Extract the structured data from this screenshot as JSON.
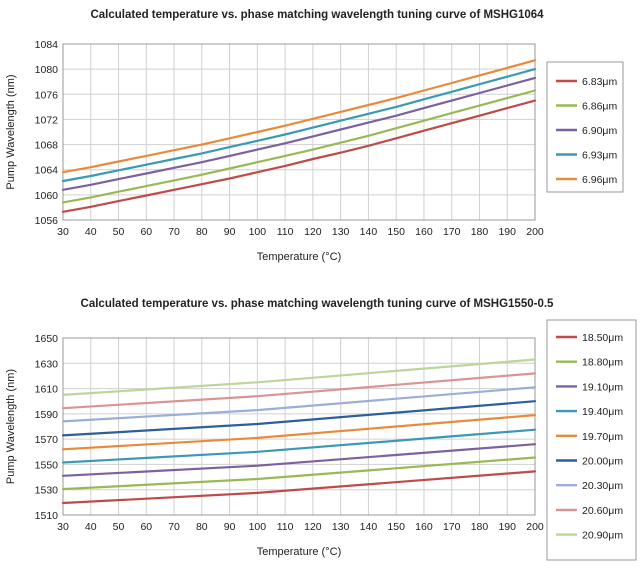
{
  "chart_data": [
    {
      "type": "line",
      "title": "Calculated temperature vs. phase matching wavelength tuning curve of MSHG1064",
      "xlabel": "Temperature (°C)",
      "ylabel": "Pump Wavelength (nm)",
      "xlim": [
        30,
        200
      ],
      "ylim": [
        1056,
        1084
      ],
      "xticks": [
        30,
        40,
        50,
        60,
        70,
        80,
        90,
        100,
        110,
        120,
        130,
        140,
        150,
        160,
        170,
        180,
        190,
        200
      ],
      "yticks": [
        1056,
        1060,
        1064,
        1068,
        1072,
        1076,
        1080,
        1084
      ],
      "grid": true,
      "legend": "right",
      "x": [
        30,
        40,
        50,
        60,
        70,
        80,
        90,
        100,
        110,
        120,
        130,
        140,
        150,
        160,
        170,
        180,
        190,
        200
      ],
      "series": [
        {
          "name": "6.83μm",
          "color": "#be4b48",
          "values": [
            1057.3,
            1058.1,
            1059.0,
            1059.9,
            1060.8,
            1061.7,
            1062.6,
            1063.6,
            1064.6,
            1065.7,
            1066.7,
            1067.8,
            1069.0,
            1070.2,
            1071.4,
            1072.6,
            1073.8,
            1075.0
          ]
        },
        {
          "name": "6.86μm",
          "color": "#98b954",
          "values": [
            1058.8,
            1059.6,
            1060.5,
            1061.4,
            1062.3,
            1063.2,
            1064.2,
            1065.2,
            1066.2,
            1067.2,
            1068.3,
            1069.4,
            1070.6,
            1071.8,
            1073.0,
            1074.2,
            1075.4,
            1076.6
          ]
        },
        {
          "name": "6.90μm",
          "color": "#7d60a0",
          "values": [
            1060.8,
            1061.6,
            1062.5,
            1063.4,
            1064.3,
            1065.2,
            1066.2,
            1067.2,
            1068.2,
            1069.3,
            1070.4,
            1071.5,
            1072.6,
            1073.8,
            1075.0,
            1076.2,
            1077.4,
            1078.6
          ]
        },
        {
          "name": "6.93μm",
          "color": "#3a9ab4",
          "values": [
            1062.2,
            1063.0,
            1063.9,
            1064.8,
            1065.7,
            1066.6,
            1067.6,
            1068.6,
            1069.6,
            1070.7,
            1071.8,
            1072.9,
            1074.0,
            1075.2,
            1076.4,
            1077.6,
            1078.8,
            1080.0
          ]
        },
        {
          "name": "6.96μm",
          "color": "#e98a3a",
          "values": [
            1063.6,
            1064.4,
            1065.3,
            1066.2,
            1067.1,
            1068.0,
            1069.0,
            1070.0,
            1071.0,
            1072.1,
            1073.2,
            1074.3,
            1075.4,
            1076.6,
            1077.8,
            1079.0,
            1080.2,
            1081.4
          ]
        }
      ]
    },
    {
      "type": "line",
      "title": "Calculated temperature vs. phase matching wavelength tuning curve of MSHG1550-0.5",
      "xlabel": "Temperature (°C)",
      "ylabel": "Pump Wavelength (nm)",
      "xlim": [
        30,
        200
      ],
      "ylim": [
        1510,
        1650
      ],
      "xticks": [
        30,
        40,
        50,
        60,
        70,
        80,
        90,
        100,
        110,
        120,
        130,
        140,
        150,
        160,
        170,
        180,
        190,
        200
      ],
      "yticks": [
        1510,
        1530,
        1550,
        1570,
        1590,
        1610,
        1630,
        1650
      ],
      "grid": true,
      "legend": "right",
      "x": [
        30,
        100,
        200
      ],
      "series": [
        {
          "name": "18.50μm",
          "color": "#be4b48",
          "values": [
            1519.5,
            1527.5,
            1544.5
          ]
        },
        {
          "name": "18.80μm",
          "color": "#98b954",
          "values": [
            1530.5,
            1538.5,
            1555.5
          ]
        },
        {
          "name": "19.10μm",
          "color": "#7d60a0",
          "values": [
            1541.0,
            1549.0,
            1566.0
          ]
        },
        {
          "name": "19.40μm",
          "color": "#3a9ab4",
          "values": [
            1551.5,
            1560.0,
            1577.5
          ]
        },
        {
          "name": "19.70μm",
          "color": "#e98a3a",
          "values": [
            1562.0,
            1571.0,
            1589.0
          ]
        },
        {
          "name": "20.00μm",
          "color": "#2d5f9a",
          "values": [
            1573.0,
            1582.0,
            1600.0
          ]
        },
        {
          "name": "20.30μm",
          "color": "#9aaed6",
          "values": [
            1584.0,
            1593.0,
            1611.0
          ]
        },
        {
          "name": "20.60μm",
          "color": "#d99594",
          "values": [
            1594.5,
            1604.0,
            1622.0
          ]
        },
        {
          "name": "20.90μm",
          "color": "#bcd59a",
          "values": [
            1605.0,
            1615.0,
            1633.0
          ]
        }
      ]
    }
  ]
}
